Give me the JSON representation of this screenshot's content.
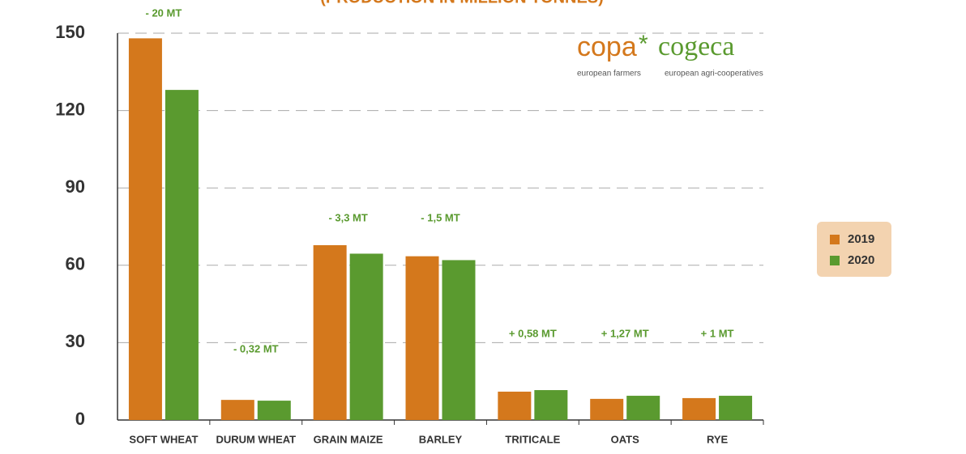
{
  "chart_data": {
    "type": "bar",
    "title": "(PRODUCTION IN MILLION TONNES)",
    "categories": [
      "SOFT WHEAT",
      "DURUM WHEAT",
      "GRAIN MAIZE",
      "BARLEY",
      "TRITICALE",
      "OATS",
      "RYE"
    ],
    "series": [
      {
        "name": "2019",
        "color": "#d4781c",
        "values": [
          148,
          7.8,
          67.8,
          63.5,
          11.0,
          8.2,
          8.5
        ]
      },
      {
        "name": "2020",
        "color": "#5a9a2f",
        "values": [
          128,
          7.5,
          64.5,
          62.0,
          11.6,
          9.4,
          9.4
        ]
      }
    ],
    "annotations": [
      "- 20 MT",
      "- 0,32 MT",
      "- 3,3 MT",
      "- 1,5 MT",
      "+ 0,58 MT",
      "+ 1,27 MT",
      "+ 1 MT"
    ],
    "ylim": [
      0,
      150
    ],
    "yticks": [
      0,
      30,
      60,
      90,
      120,
      150
    ],
    "grid": true,
    "legend": "right",
    "logo": {
      "left": "copa",
      "right": "cogeca",
      "left_caption": "european farmers",
      "right_caption": "european agri-cooperatives"
    }
  }
}
